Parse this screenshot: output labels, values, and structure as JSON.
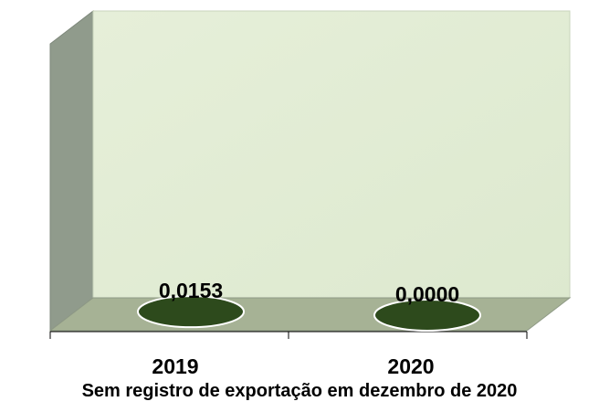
{
  "chart_data": {
    "type": "bar",
    "categories": [
      "2019",
      "2020"
    ],
    "values": [
      0.0153,
      0.0
    ],
    "data_labels": [
      "0,0153",
      "0,0000"
    ],
    "note": "Sem registro de exportação em dezembro de 2020",
    "grid": false,
    "legend": "none",
    "style": "3d-cylinder"
  },
  "colors": {
    "back_wall": "#e2edd4",
    "side_wall": "#909b8c",
    "floor": "#a6b295",
    "bar_fill": "#2d4a1c",
    "bar_outline": "#ffffff",
    "axis": "#000000",
    "text": "#000000"
  }
}
